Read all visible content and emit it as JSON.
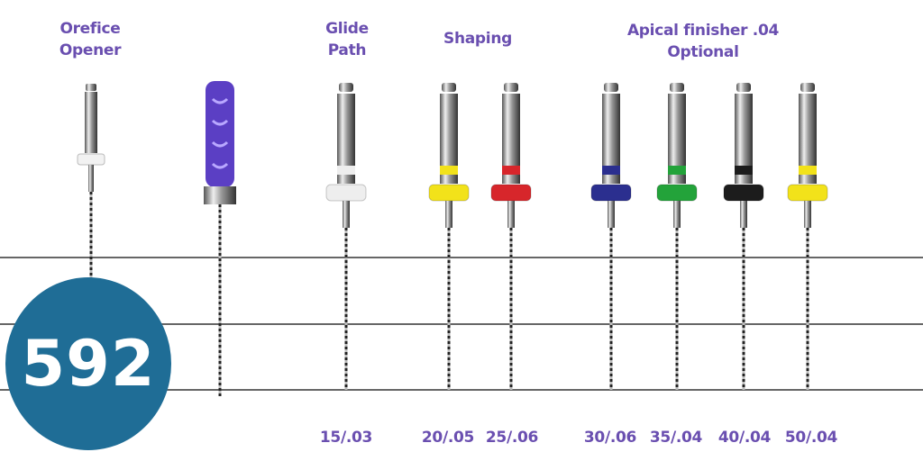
{
  "headings": {
    "orifice": [
      "Orefice",
      "Opener"
    ],
    "glide": [
      "Glide",
      "Path"
    ],
    "shaping": [
      "Shaping"
    ],
    "apical": [
      "Apical finisher .04",
      "Optional"
    ]
  },
  "badge": "592",
  "sizes": [
    "15/.03",
    "20/.05",
    "25/.06",
    "30/.06",
    "35/.04",
    "40/.04",
    "50/.04"
  ],
  "files": [
    {
      "type": "orifice-opener",
      "ring_color": "#f2f2f2"
    },
    {
      "type": "hand-file",
      "handle_color": "#5b3fc4"
    },
    {
      "type": "rotary",
      "ring_color": "#eeeeee",
      "size_index": 0
    },
    {
      "type": "rotary",
      "ring_color": "#f2e21a",
      "size_index": 1
    },
    {
      "type": "rotary",
      "ring_color": "#d7262b",
      "size_index": 2
    },
    {
      "type": "rotary",
      "ring_color": "#2b2f8f",
      "size_index": 3
    },
    {
      "type": "rotary",
      "ring_color": "#23a33a",
      "size_index": 4
    },
    {
      "type": "rotary",
      "ring_color": "#1c1c1c",
      "size_index": 5
    },
    {
      "type": "rotary",
      "ring_color": "#f2e21a",
      "size_index": 6
    }
  ],
  "colors": {
    "text": "#6a4fb0",
    "badge": "#1f6d96",
    "lines": "#666666"
  }
}
